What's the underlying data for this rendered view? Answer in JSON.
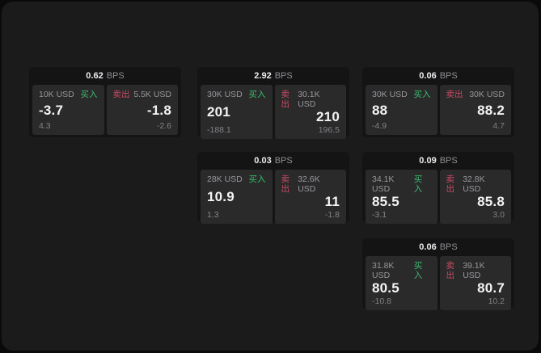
{
  "colors": {
    "page_background": "#0a0a0a",
    "window_background": "#1b1b1c",
    "card_background": "#141415",
    "tile_background": "#2a2a2b",
    "buy_green": "#3bbd6d",
    "sell_red": "#cb4a63",
    "value_white": "#f4f4f5",
    "label_gray": "#97979c"
  },
  "bps_unit": "BPS",
  "buy_label": "买入",
  "sell_label": "卖出",
  "cards": [
    {
      "bps_value": "0.62",
      "buy": {
        "amount": "10K USD",
        "price": "-3.7",
        "delta": "4.3"
      },
      "sell": {
        "amount": "5.5K USD",
        "price": "-1.8",
        "delta": "-2.6"
      }
    },
    {
      "bps_value": "2.92",
      "buy": {
        "amount": "30K USD",
        "price": "201",
        "delta": "-188.1"
      },
      "sell": {
        "amount": "30.1K USD",
        "price": "210",
        "delta": "196.5"
      }
    },
    {
      "bps_value": "0.06",
      "buy": {
        "amount": "30K USD",
        "price": "88",
        "delta": "-4.9"
      },
      "sell": {
        "amount": "30K USD",
        "price": "88.2",
        "delta": "4.7"
      }
    },
    {
      "bps_value": "0.03",
      "buy": {
        "amount": "28K USD",
        "price": "10.9",
        "delta": "1.3"
      },
      "sell": {
        "amount": "32.6K USD",
        "price": "11",
        "delta": "-1.8"
      }
    },
    {
      "bps_value": "0.09",
      "buy": {
        "amount": "34.1K USD",
        "price": "85.5",
        "delta": "-3.1"
      },
      "sell": {
        "amount": "32.8K USD",
        "price": "85.8",
        "delta": "3.0"
      }
    },
    {
      "bps_value": "0.06",
      "buy": {
        "amount": "31.8K USD",
        "price": "80.5",
        "delta": "-10.8"
      },
      "sell": {
        "amount": "39.1K USD",
        "price": "80.7",
        "delta": "10.2"
      }
    }
  ]
}
